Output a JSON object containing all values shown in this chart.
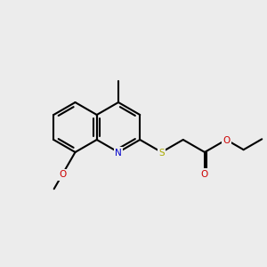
{
  "background_color": "#ececec",
  "bond_color": "#000000",
  "lw": 1.5,
  "atom_colors": {
    "N": "#0000cc",
    "O": "#cc0000",
    "S": "#aaaa00",
    "C": "#000000"
  },
  "font_size": 7.5,
  "font_size_small": 6.5
}
